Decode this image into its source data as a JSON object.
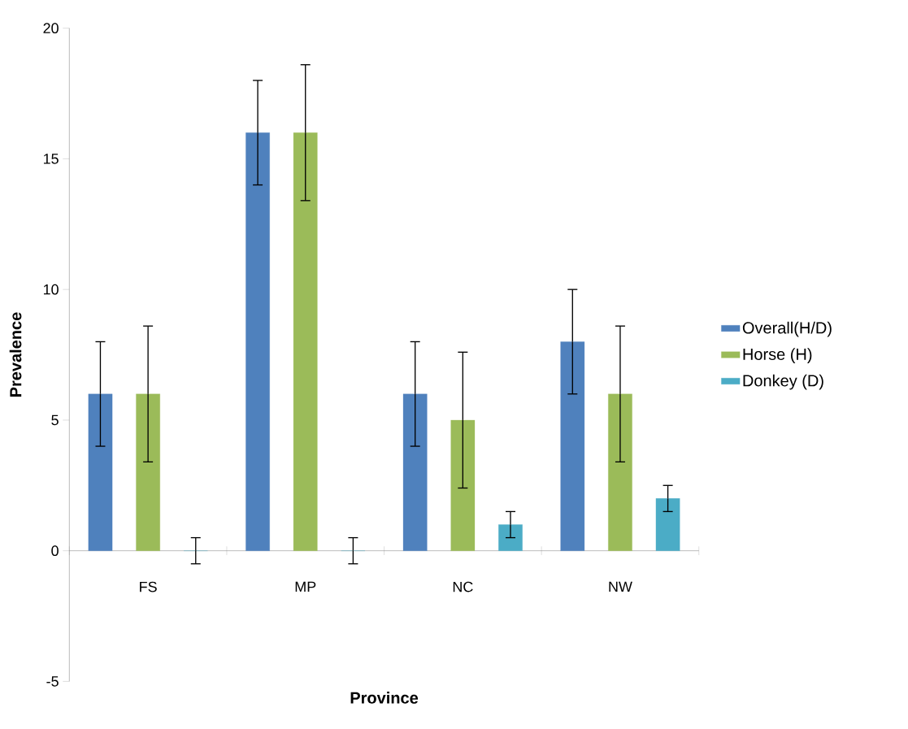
{
  "chart_data": {
    "type": "bar",
    "xlabel": "Province",
    "ylabel": "Prevalence",
    "categories": [
      "FS",
      "MP",
      "NC",
      "NW"
    ],
    "series": [
      {
        "name": "Overall(H/D)",
        "color": "#4f81bd",
        "values": [
          6,
          16,
          6,
          8
        ],
        "errors": [
          2,
          2,
          2,
          2
        ]
      },
      {
        "name": "Horse (H)",
        "color": "#9bbb59",
        "values": [
          6,
          16,
          5,
          6
        ],
        "errors": [
          2.6,
          2.6,
          2.6,
          2.6
        ]
      },
      {
        "name": "Donkey (D)",
        "color": "#4bacc6",
        "values": [
          0,
          0,
          1,
          2
        ],
        "errors": [
          0.5,
          0.5,
          0.5,
          0.5
        ]
      }
    ],
    "ylim": [
      -5,
      20
    ],
    "yticks": [
      -5,
      0,
      5,
      10,
      15,
      20
    ],
    "grid": false,
    "legend": "right"
  }
}
